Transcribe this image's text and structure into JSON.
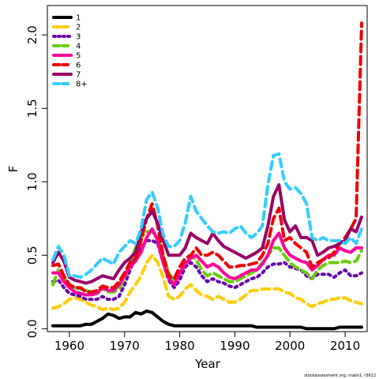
{
  "chart_data": {
    "type": "line",
    "xlabel": "Year",
    "ylabel": "F",
    "xlim": [
      1956,
      2014
    ],
    "ylim": [
      -0.02,
      2.2
    ],
    "x_ticks": [
      "1960",
      "1970",
      "1980",
      "1990",
      "2000",
      "2010"
    ],
    "y_ticks": [
      "0.0",
      "0.5",
      "1.0",
      "1.5",
      "2.0"
    ],
    "legend_position": "top-left",
    "footnote": "stockassessment.org, malin1, r3612",
    "x": [
      1957,
      1958,
      1959,
      1960,
      1961,
      1962,
      1963,
      1964,
      1965,
      1966,
      1967,
      1968,
      1969,
      1970,
      1971,
      1972,
      1973,
      1974,
      1975,
      1976,
      1977,
      1978,
      1979,
      1980,
      1981,
      1982,
      1983,
      1984,
      1985,
      1986,
      1987,
      1988,
      1989,
      1990,
      1991,
      1992,
      1993,
      1994,
      1995,
      1996,
      1997,
      1998,
      1999,
      2000,
      2001,
      2002,
      2003,
      2004,
      2005,
      2006,
      2007,
      2008,
      2009,
      2010,
      2011,
      2012,
      2013
    ],
    "series": [
      {
        "name": "1",
        "color": "#000000",
        "dash": "solid",
        "values": [
          0.02,
          0.02,
          0.02,
          0.02,
          0.02,
          0.02,
          0.03,
          0.03,
          0.05,
          0.07,
          0.1,
          0.09,
          0.07,
          0.08,
          0.08,
          0.11,
          0.1,
          0.12,
          0.11,
          0.08,
          0.05,
          0.03,
          0.02,
          0.02,
          0.02,
          0.02,
          0.02,
          0.02,
          0.02,
          0.02,
          0.02,
          0.02,
          0.02,
          0.02,
          0.02,
          0.02,
          0.02,
          0.01,
          0.01,
          0.01,
          0.01,
          0.01,
          0.01,
          0.01,
          0.01,
          0.01,
          0.0,
          0.0,
          0.0,
          0.0,
          0.0,
          0.0,
          0.01,
          0.01,
          0.01,
          0.01,
          0.01
        ]
      },
      {
        "name": "2",
        "color": "#ffcc00",
        "dash": "dashed",
        "values": [
          0.14,
          0.15,
          0.17,
          0.2,
          0.21,
          0.2,
          0.18,
          0.16,
          0.15,
          0.13,
          0.14,
          0.13,
          0.14,
          0.18,
          0.25,
          0.3,
          0.36,
          0.45,
          0.5,
          0.45,
          0.35,
          0.22,
          0.2,
          0.22,
          0.27,
          0.3,
          0.26,
          0.23,
          0.22,
          0.2,
          0.22,
          0.2,
          0.18,
          0.18,
          0.2,
          0.23,
          0.26,
          0.26,
          0.27,
          0.27,
          0.27,
          0.27,
          0.25,
          0.24,
          0.21,
          0.2,
          0.17,
          0.15,
          0.17,
          0.18,
          0.2,
          0.2,
          0.21,
          0.21,
          0.19,
          0.18,
          0.17
        ]
      },
      {
        "name": "3",
        "color": "#6600aa",
        "dash": "dotted",
        "values": [
          0.32,
          0.33,
          0.28,
          0.24,
          0.23,
          0.22,
          0.2,
          0.2,
          0.2,
          0.22,
          0.2,
          0.2,
          0.22,
          0.3,
          0.4,
          0.5,
          0.55,
          0.6,
          0.6,
          0.58,
          0.45,
          0.33,
          0.28,
          0.33,
          0.42,
          0.45,
          0.42,
          0.36,
          0.32,
          0.34,
          0.32,
          0.31,
          0.29,
          0.28,
          0.3,
          0.32,
          0.34,
          0.35,
          0.38,
          0.42,
          0.44,
          0.44,
          0.45,
          0.42,
          0.41,
          0.4,
          0.36,
          0.34,
          0.37,
          0.37,
          0.37,
          0.35,
          0.38,
          0.4,
          0.36,
          0.36,
          0.38
        ]
      },
      {
        "name": "4",
        "color": "#66cc00",
        "dash": "dashed",
        "values": [
          0.3,
          0.4,
          0.35,
          0.3,
          0.28,
          0.27,
          0.26,
          0.25,
          0.25,
          0.27,
          0.25,
          0.25,
          0.27,
          0.35,
          0.45,
          0.55,
          0.62,
          0.66,
          0.66,
          0.62,
          0.5,
          0.38,
          0.32,
          0.38,
          0.45,
          0.5,
          0.47,
          0.4,
          0.36,
          0.38,
          0.36,
          0.34,
          0.32,
          0.32,
          0.34,
          0.36,
          0.38,
          0.4,
          0.45,
          0.5,
          0.55,
          0.55,
          0.5,
          0.45,
          0.42,
          0.4,
          0.38,
          0.34,
          0.4,
          0.43,
          0.45,
          0.45,
          0.45,
          0.46,
          0.45,
          0.46,
          0.53
        ]
      },
      {
        "name": "5",
        "color": "#ff0099",
        "dash": "solid",
        "values": [
          0.38,
          0.38,
          0.32,
          0.28,
          0.25,
          0.24,
          0.23,
          0.23,
          0.24,
          0.28,
          0.26,
          0.26,
          0.3,
          0.36,
          0.42,
          0.46,
          0.52,
          0.62,
          0.68,
          0.6,
          0.45,
          0.34,
          0.3,
          0.38,
          0.44,
          0.48,
          0.5,
          0.46,
          0.42,
          0.44,
          0.42,
          0.38,
          0.35,
          0.34,
          0.36,
          0.38,
          0.4,
          0.4,
          0.44,
          0.5,
          0.6,
          0.65,
          0.55,
          0.5,
          0.48,
          0.46,
          0.45,
          0.4,
          0.43,
          0.47,
          0.5,
          0.5,
          0.55,
          0.53,
          0.52,
          0.55,
          0.55
        ]
      },
      {
        "name": "6",
        "color": "#ee0000",
        "dash": "dashed",
        "values": [
          0.43,
          0.44,
          0.36,
          0.3,
          0.28,
          0.28,
          0.25,
          0.25,
          0.26,
          0.29,
          0.28,
          0.28,
          0.32,
          0.38,
          0.45,
          0.48,
          0.6,
          0.75,
          0.85,
          0.7,
          0.5,
          0.36,
          0.34,
          0.42,
          0.48,
          0.5,
          0.55,
          0.5,
          0.5,
          0.52,
          0.5,
          0.46,
          0.42,
          0.42,
          0.43,
          0.43,
          0.44,
          0.45,
          0.5,
          0.58,
          0.75,
          0.82,
          0.6,
          0.62,
          0.58,
          0.55,
          0.52,
          0.42,
          0.45,
          0.47,
          0.48,
          0.52,
          0.58,
          0.62,
          0.68,
          0.75,
          2.08
        ]
      },
      {
        "name": "7",
        "color": "#990066",
        "dash": "solid",
        "values": [
          0.45,
          0.52,
          0.46,
          0.35,
          0.33,
          0.32,
          0.31,
          0.32,
          0.34,
          0.36,
          0.35,
          0.34,
          0.4,
          0.45,
          0.48,
          0.52,
          0.66,
          0.75,
          0.8,
          0.72,
          0.6,
          0.5,
          0.5,
          0.5,
          0.55,
          0.65,
          0.62,
          0.6,
          0.58,
          0.65,
          0.6,
          0.56,
          0.54,
          0.52,
          0.5,
          0.48,
          0.5,
          0.52,
          0.55,
          0.7,
          0.9,
          0.98,
          0.74,
          0.66,
          0.7,
          0.62,
          0.62,
          0.6,
          0.5,
          0.52,
          0.55,
          0.56,
          0.58,
          0.6,
          0.68,
          0.66,
          0.76
        ]
      },
      {
        "name": "8+",
        "color": "#33ccff",
        "dash": "dashed",
        "values": [
          0.47,
          0.56,
          0.5,
          0.36,
          0.36,
          0.35,
          0.37,
          0.4,
          0.44,
          0.48,
          0.46,
          0.44,
          0.52,
          0.56,
          0.6,
          0.58,
          0.68,
          0.88,
          0.93,
          0.82,
          0.64,
          0.56,
          0.56,
          0.6,
          0.72,
          0.9,
          0.8,
          0.75,
          0.7,
          0.66,
          0.65,
          0.66,
          0.65,
          0.68,
          0.7,
          0.65,
          0.62,
          0.65,
          0.7,
          0.98,
          1.18,
          1.19,
          1.0,
          0.95,
          0.96,
          0.92,
          0.85,
          0.62,
          0.6,
          0.62,
          0.6,
          0.6,
          0.6,
          0.58,
          0.62,
          0.58,
          0.68
        ]
      }
    ]
  }
}
